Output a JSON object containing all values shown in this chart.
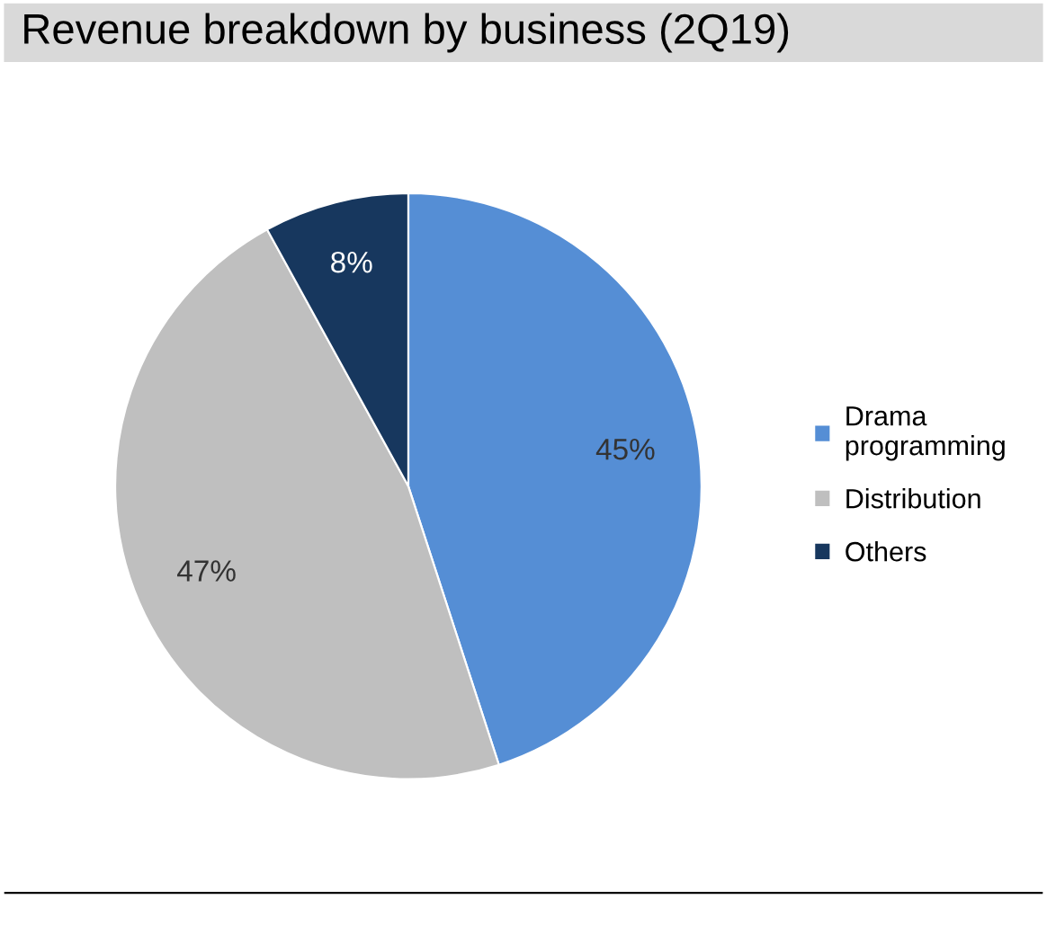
{
  "chart_data": {
    "type": "pie",
    "title": "Revenue breakdown by business (2Q19)",
    "categories": [
      "Drama\nprogramming",
      "Distribution",
      "Others"
    ],
    "values": [
      45,
      47,
      8
    ],
    "colors": [
      "#558ed5",
      "#bfbfbf",
      "#17375e"
    ],
    "value_labels": [
      "45%",
      "47%",
      "8%"
    ],
    "legend": "right"
  }
}
